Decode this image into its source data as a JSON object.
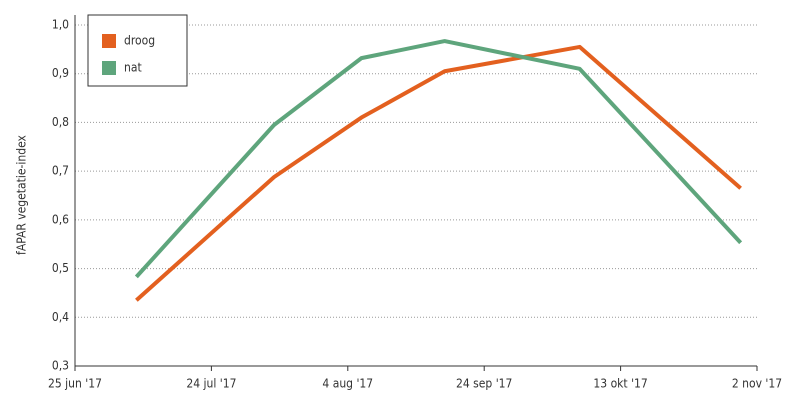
{
  "chart_data": {
    "type": "line",
    "ylabel": "fAPAR vegetatie-index",
    "x": [
      0.45,
      1.46,
      2.1,
      2.71,
      3.7,
      4.88
    ],
    "series": [
      {
        "name": "droog",
        "color": "#e3601f",
        "values": [
          0.435,
          0.688,
          0.81,
          0.905,
          0.955,
          0.665
        ]
      },
      {
        "name": "nat",
        "color": "#5ea57c",
        "values": [
          0.483,
          0.795,
          0.932,
          0.967,
          0.91,
          0.553
        ]
      }
    ],
    "xlim": [
      0,
      5
    ],
    "xticks": [
      {
        "value": 0,
        "label": "25 jun '17"
      },
      {
        "value": 1,
        "label": "24 jul '17"
      },
      {
        "value": 2,
        "label": "4 aug '17"
      },
      {
        "value": 3,
        "label": "24 sep '17"
      },
      {
        "value": 4,
        "label": "13 okt '17"
      },
      {
        "value": 5,
        "label": "2 nov '17"
      }
    ],
    "ylim": [
      0.3,
      1.0
    ],
    "yticks": [
      {
        "value": 0.3,
        "label": "0,3"
      },
      {
        "value": 0.4,
        "label": "0,4"
      },
      {
        "value": 0.5,
        "label": "0,5"
      },
      {
        "value": 0.6,
        "label": "0,6"
      },
      {
        "value": 0.7,
        "label": "0,7"
      },
      {
        "value": 0.8,
        "label": "0,8"
      },
      {
        "value": 0.9,
        "label": "0,9"
      },
      {
        "value": 1.0,
        "label": "1,0"
      }
    ],
    "grid": true,
    "legend": "upper left"
  }
}
